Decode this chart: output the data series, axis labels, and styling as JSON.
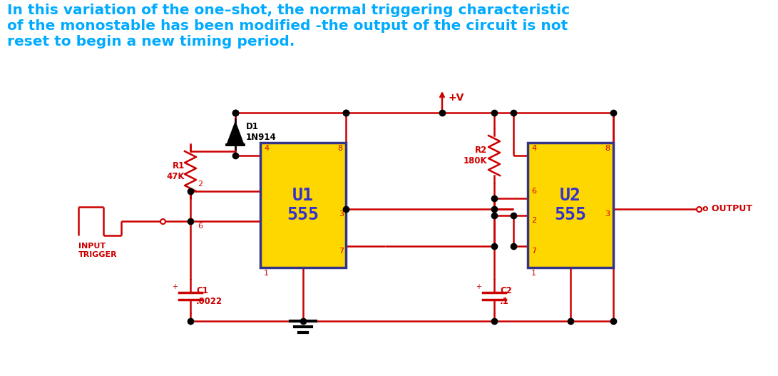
{
  "title_text": "In this variation of the one–shot, the normal triggering characteristic\nof the monostable has been modified -the output of the circuit is not\nreset to begin a new timing period.",
  "title_color": "#00AAFF",
  "title_fontsize": 14.5,
  "bg_color": "#FFFFFF",
  "wire_color": "#CC0000",
  "black_color": "#000000",
  "pin_label_color": "#CC0000",
  "component_label_color": "#CC0000",
  "ic_fill_color": "#FFD700",
  "ic_text_color": "#3333CC",
  "ic_border_color": "#333388",
  "u1_label": "U1\n555",
  "u2_label": "U2\n555",
  "r1_label": "R1\n47K",
  "r2_label": "R2\n180K",
  "c1_label": "C1\n.0022",
  "c2_label": "C2\n.1",
  "d1_label": "D1\n1N914",
  "vcc_label": "+V",
  "output_label": "o OUTPUT",
  "input_label": "INPUT\nTRIGGER"
}
